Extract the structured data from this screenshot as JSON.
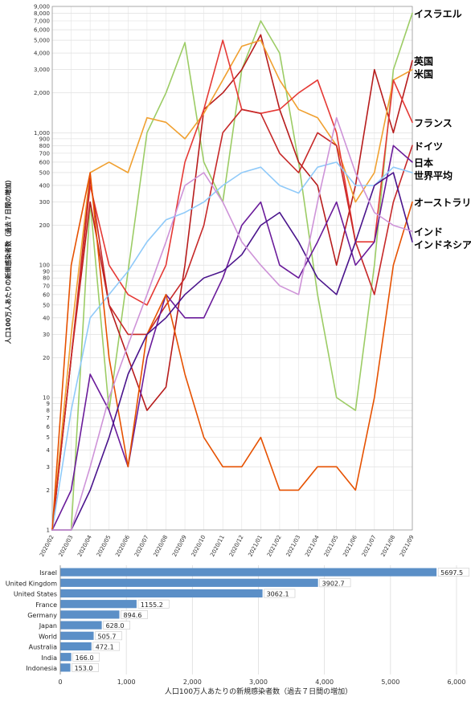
{
  "chart_data": [
    {
      "type": "line",
      "ylabel": "人口100万人あたりの新規感染者数（過去７日間の増加）",
      "yscale": "log",
      "ylim": [
        1,
        9000
      ],
      "grid": true,
      "y_ticks": [
        {
          "v": 1,
          "label": "1"
        },
        {
          "v": 2,
          "label": "2"
        },
        {
          "v": 3,
          "label": "3"
        },
        {
          "v": 4,
          "label": "4"
        },
        {
          "v": 5,
          "label": "5"
        },
        {
          "v": 6,
          "label": "6"
        },
        {
          "v": 7,
          "label": "7"
        },
        {
          "v": 8,
          "label": "8"
        },
        {
          "v": 9,
          "label": "9"
        },
        {
          "v": 10,
          "label": "10"
        },
        {
          "v": 20,
          "label": "20"
        },
        {
          "v": 30,
          "label": "30"
        },
        {
          "v": 40,
          "label": "40"
        },
        {
          "v": 50,
          "label": "50"
        },
        {
          "v": 60,
          "label": "60"
        },
        {
          "v": 70,
          "label": "70"
        },
        {
          "v": 80,
          "label": "80"
        },
        {
          "v": 90,
          "label": "90"
        },
        {
          "v": 100,
          "label": "100"
        },
        {
          "v": 200,
          "label": "200"
        },
        {
          "v": 300,
          "label": "300"
        },
        {
          "v": 400,
          "label": "400"
        },
        {
          "v": 500,
          "label": "500"
        },
        {
          "v": 600,
          "label": "600"
        },
        {
          "v": 700,
          "label": "700"
        },
        {
          "v": 800,
          "label": "800"
        },
        {
          "v": 900,
          "label": "900"
        },
        {
          "v": 1000,
          "label": "1,000"
        },
        {
          "v": 2000,
          "label": "2,000"
        },
        {
          "v": 3000,
          "label": "3,000"
        },
        {
          "v": 4000,
          "label": "4,000"
        },
        {
          "v": 5000,
          "label": "5,000"
        },
        {
          "v": 6000,
          "label": "6,000"
        },
        {
          "v": 7000,
          "label": "7,000"
        },
        {
          "v": 8000,
          "label": "8,000"
        },
        {
          "v": 9000,
          "label": "9,000"
        }
      ],
      "x_ticks": [
        "2020/02",
        "2020/03",
        "2020/04",
        "2020/05",
        "2020/06",
        "2020/07",
        "2020/08",
        "2020/09",
        "2020/10",
        "2020/11",
        "2020/12",
        "2021/01",
        "2021/02",
        "2021/03",
        "2021/04",
        "2021/05",
        "2021/06",
        "2021/07",
        "2021/08",
        "2021/09"
      ],
      "series": [
        {
          "name": "イスラエル",
          "color": "#9ccc65",
          "points": [
            [
              "2020/02",
              1
            ],
            [
              "2020/03",
              1
            ],
            [
              "2020/04",
              300
            ],
            [
              "2020/05",
              8
            ],
            [
              "2020/06",
              90
            ],
            [
              "2020/07",
              1000
            ],
            [
              "2020/08",
              2000
            ],
            [
              "2020/09",
              4800
            ],
            [
              "2020/10",
              600
            ],
            [
              "2020/11",
              300
            ],
            [
              "2020/12",
              3000
            ],
            [
              "2021/01",
              7000
            ],
            [
              "2021/02",
              4000
            ],
            [
              "2021/03",
              600
            ],
            [
              "2021/04",
              60
            ],
            [
              "2021/05",
              10
            ],
            [
              "2021/06",
              8
            ],
            [
              "2021/07",
              100
            ],
            [
              "2021/08",
              3000
            ],
            [
              "2021/09",
              8000
            ]
          ]
        },
        {
          "name": "英国",
          "color": "#b71c1c",
          "points": [
            [
              "2020/02",
              1
            ],
            [
              "2020/03",
              20
            ],
            [
              "2020/04",
              300
            ],
            [
              "2020/05",
              50
            ],
            [
              "2020/06",
              20
            ],
            [
              "2020/07",
              8
            ],
            [
              "2020/08",
              12
            ],
            [
              "2020/09",
              100
            ],
            [
              "2020/10",
              1500
            ],
            [
              "2020/11",
              2000
            ],
            [
              "2020/12",
              3000
            ],
            [
              "2021/01",
              5500
            ],
            [
              "2021/02",
              1500
            ],
            [
              "2021/03",
              600
            ],
            [
              "2021/04",
              400
            ],
            [
              "2021/05",
              100
            ],
            [
              "2021/06",
              400
            ],
            [
              "2021/07",
              3000
            ],
            [
              "2021/08",
              1000
            ],
            [
              "2021/09",
              3500
            ]
          ]
        },
        {
          "name": "米国",
          "color": "#f0a030",
          "points": [
            [
              "2020/02",
              1
            ],
            [
              "2020/03",
              30
            ],
            [
              "2020/04",
              500
            ],
            [
              "2020/05",
              600
            ],
            [
              "2020/06",
              500
            ],
            [
              "2020/07",
              1300
            ],
            [
              "2020/08",
              1200
            ],
            [
              "2020/09",
              900
            ],
            [
              "2020/10",
              1400
            ],
            [
              "2020/11",
              2500
            ],
            [
              "2020/12",
              4500
            ],
            [
              "2021/01",
              5000
            ],
            [
              "2021/02",
              2500
            ],
            [
              "2021/03",
              1500
            ],
            [
              "2021/04",
              1300
            ],
            [
              "2021/05",
              800
            ],
            [
              "2021/06",
              300
            ],
            [
              "2021/07",
              500
            ],
            [
              "2021/08",
              2500
            ],
            [
              "2021/09",
              3000
            ]
          ]
        },
        {
          "name": "フランス",
          "color": "#e53935",
          "points": [
            [
              "2020/02",
              1
            ],
            [
              "2020/03",
              20
            ],
            [
              "2020/04",
              400
            ],
            [
              "2020/05",
              100
            ],
            [
              "2020/06",
              60
            ],
            [
              "2020/07",
              50
            ],
            [
              "2020/08",
              100
            ],
            [
              "2020/09",
              600
            ],
            [
              "2020/10",
              1500
            ],
            [
              "2020/11",
              5000
            ],
            [
              "2020/12",
              1500
            ],
            [
              "2021/01",
              1400
            ],
            [
              "2021/02",
              1500
            ],
            [
              "2021/03",
              2000
            ],
            [
              "2021/04",
              2500
            ],
            [
              "2021/05",
              1000
            ],
            [
              "2021/06",
              150
            ],
            [
              "2021/07",
              150
            ],
            [
              "2021/08",
              2500
            ],
            [
              "2021/09",
              1200
            ]
          ]
        },
        {
          "name": "ドイツ",
          "color": "#c62828",
          "points": [
            [
              "2020/02",
              1
            ],
            [
              "2020/03",
              20
            ],
            [
              "2020/04",
              450
            ],
            [
              "2020/05",
              50
            ],
            [
              "2020/06",
              30
            ],
            [
              "2020/07",
              30
            ],
            [
              "2020/08",
              50
            ],
            [
              "2020/09",
              80
            ],
            [
              "2020/10",
              200
            ],
            [
              "2020/11",
              1000
            ],
            [
              "2020/12",
              1500
            ],
            [
              "2021/01",
              1400
            ],
            [
              "2021/02",
              700
            ],
            [
              "2021/03",
              500
            ],
            [
              "2021/04",
              1000
            ],
            [
              "2021/05",
              800
            ],
            [
              "2021/06",
              150
            ],
            [
              "2021/07",
              60
            ],
            [
              "2021/08",
              300
            ],
            [
              "2021/09",
              800
            ]
          ]
        },
        {
          "name": "日本",
          "color": "#6a1b9a",
          "points": [
            [
              "2020/02",
              1
            ],
            [
              "2020/03",
              2
            ],
            [
              "2020/04",
              15
            ],
            [
              "2020/05",
              8
            ],
            [
              "2020/06",
              3
            ],
            [
              "2020/07",
              20
            ],
            [
              "2020/08",
              60
            ],
            [
              "2020/09",
              40
            ],
            [
              "2020/10",
              40
            ],
            [
              "2020/11",
              80
            ],
            [
              "2020/12",
              200
            ],
            [
              "2021/01",
              300
            ],
            [
              "2021/02",
              100
            ],
            [
              "2021/03",
              80
            ],
            [
              "2021/04",
              150
            ],
            [
              "2021/05",
              300
            ],
            [
              "2021/06",
              100
            ],
            [
              "2021/07",
              150
            ],
            [
              "2021/08",
              800
            ],
            [
              "2021/09",
              600
            ]
          ]
        },
        {
          "name": "世界平均",
          "color": "#90caf9",
          "points": [
            [
              "2020/02",
              1
            ],
            [
              "2020/03",
              8
            ],
            [
              "2020/04",
              40
            ],
            [
              "2020/05",
              60
            ],
            [
              "2020/06",
              90
            ],
            [
              "2020/07",
              150
            ],
            [
              "2020/08",
              220
            ],
            [
              "2020/09",
              250
            ],
            [
              "2020/10",
              300
            ],
            [
              "2020/11",
              400
            ],
            [
              "2020/12",
              500
            ],
            [
              "2021/01",
              550
            ],
            [
              "2021/02",
              400
            ],
            [
              "2021/03",
              350
            ],
            [
              "2021/04",
              550
            ],
            [
              "2021/05",
              600
            ],
            [
              "2021/06",
              400
            ],
            [
              "2021/07",
              400
            ],
            [
              "2021/08",
              550
            ],
            [
              "2021/09",
              500
            ]
          ]
        },
        {
          "name": "オーストラリア",
          "color": "#e65100",
          "points": [
            [
              "2020/02",
              1
            ],
            [
              "2020/03",
              100
            ],
            [
              "2020/04",
              500
            ],
            [
              "2020/05",
              20
            ],
            [
              "2020/06",
              3
            ],
            [
              "2020/07",
              30
            ],
            [
              "2020/08",
              60
            ],
            [
              "2020/09",
              15
            ],
            [
              "2020/10",
              5
            ],
            [
              "2020/11",
              3
            ],
            [
              "2020/12",
              3
            ],
            [
              "2021/01",
              5
            ],
            [
              "2021/02",
              2
            ],
            [
              "2021/03",
              2
            ],
            [
              "2021/04",
              3
            ],
            [
              "2021/05",
              3
            ],
            [
              "2021/06",
              2
            ],
            [
              "2021/07",
              10
            ],
            [
              "2021/08",
              100
            ],
            [
              "2021/09",
              300
            ]
          ]
        },
        {
          "name": "インドネシア",
          "color": "#4a148c",
          "points": [
            [
              "2020/02",
              1
            ],
            [
              "2020/03",
              1
            ],
            [
              "2020/04",
              2
            ],
            [
              "2020/05",
              5
            ],
            [
              "2020/06",
              15
            ],
            [
              "2020/07",
              30
            ],
            [
              "2020/08",
              40
            ],
            [
              "2020/09",
              60
            ],
            [
              "2020/10",
              80
            ],
            [
              "2020/11",
              90
            ],
            [
              "2020/12",
              120
            ],
            [
              "2021/01",
              200
            ],
            [
              "2021/02",
              250
            ],
            [
              "2021/03",
              150
            ],
            [
              "2021/04",
              80
            ],
            [
              "2021/05",
              60
            ],
            [
              "2021/06",
              150
            ],
            [
              "2021/07",
              400
            ],
            [
              "2021/08",
              500
            ],
            [
              "2021/09",
              150
            ]
          ]
        },
        {
          "name": "インド",
          "color": "#ce93d8",
          "points": [
            [
              "2020/02",
              1
            ],
            [
              "2020/03",
              1
            ],
            [
              "2020/04",
              3
            ],
            [
              "2020/05",
              10
            ],
            [
              "2020/06",
              25
            ],
            [
              "2020/07",
              60
            ],
            [
              "2020/08",
              150
            ],
            [
              "2020/09",
              400
            ],
            [
              "2020/10",
              500
            ],
            [
              "2020/11",
              300
            ],
            [
              "2020/12",
              150
            ],
            [
              "2021/01",
              100
            ],
            [
              "2021/02",
              70
            ],
            [
              "2021/03",
              60
            ],
            [
              "2021/04",
              300
            ],
            [
              "2021/05",
              1300
            ],
            [
              "2021/06",
              500
            ],
            [
              "2021/07",
              250
            ],
            [
              "2021/08",
              200
            ],
            [
              "2021/09",
              180
            ]
          ]
        }
      ]
    },
    {
      "type": "bar",
      "orientation": "horizontal",
      "xlabel": "人口100万人あたりの新規感染者数（過去７日間の増加）",
      "xlim": [
        0,
        6000
      ],
      "x_ticks": [
        {
          "v": 0,
          "label": "0"
        },
        {
          "v": 1000,
          "label": "1,000"
        },
        {
          "v": 2000,
          "label": "2,000"
        },
        {
          "v": 3000,
          "label": "3,000"
        },
        {
          "v": 4000,
          "label": "4,000"
        },
        {
          "v": 5000,
          "label": "5,000"
        },
        {
          "v": 6000,
          "label": "6,000"
        }
      ],
      "grid": true,
      "bar_color": "#5b8fc7",
      "categories": [
        "Israel",
        "United Kingdom",
        "United States",
        "France",
        "Germany",
        "Japan",
        "World",
        "Australia",
        "India",
        "Indonesia"
      ],
      "values": [
        5697.5,
        3902.7,
        3062.1,
        1155.2,
        894.6,
        628.0,
        505.7,
        472.1,
        166.0,
        153.0
      ],
      "value_labels": [
        "5697.5",
        "3902.7",
        "3062.1",
        "1155.2",
        "894.6",
        "628.0",
        "505.7",
        "472.1",
        "166.0",
        "153.0"
      ]
    }
  ]
}
